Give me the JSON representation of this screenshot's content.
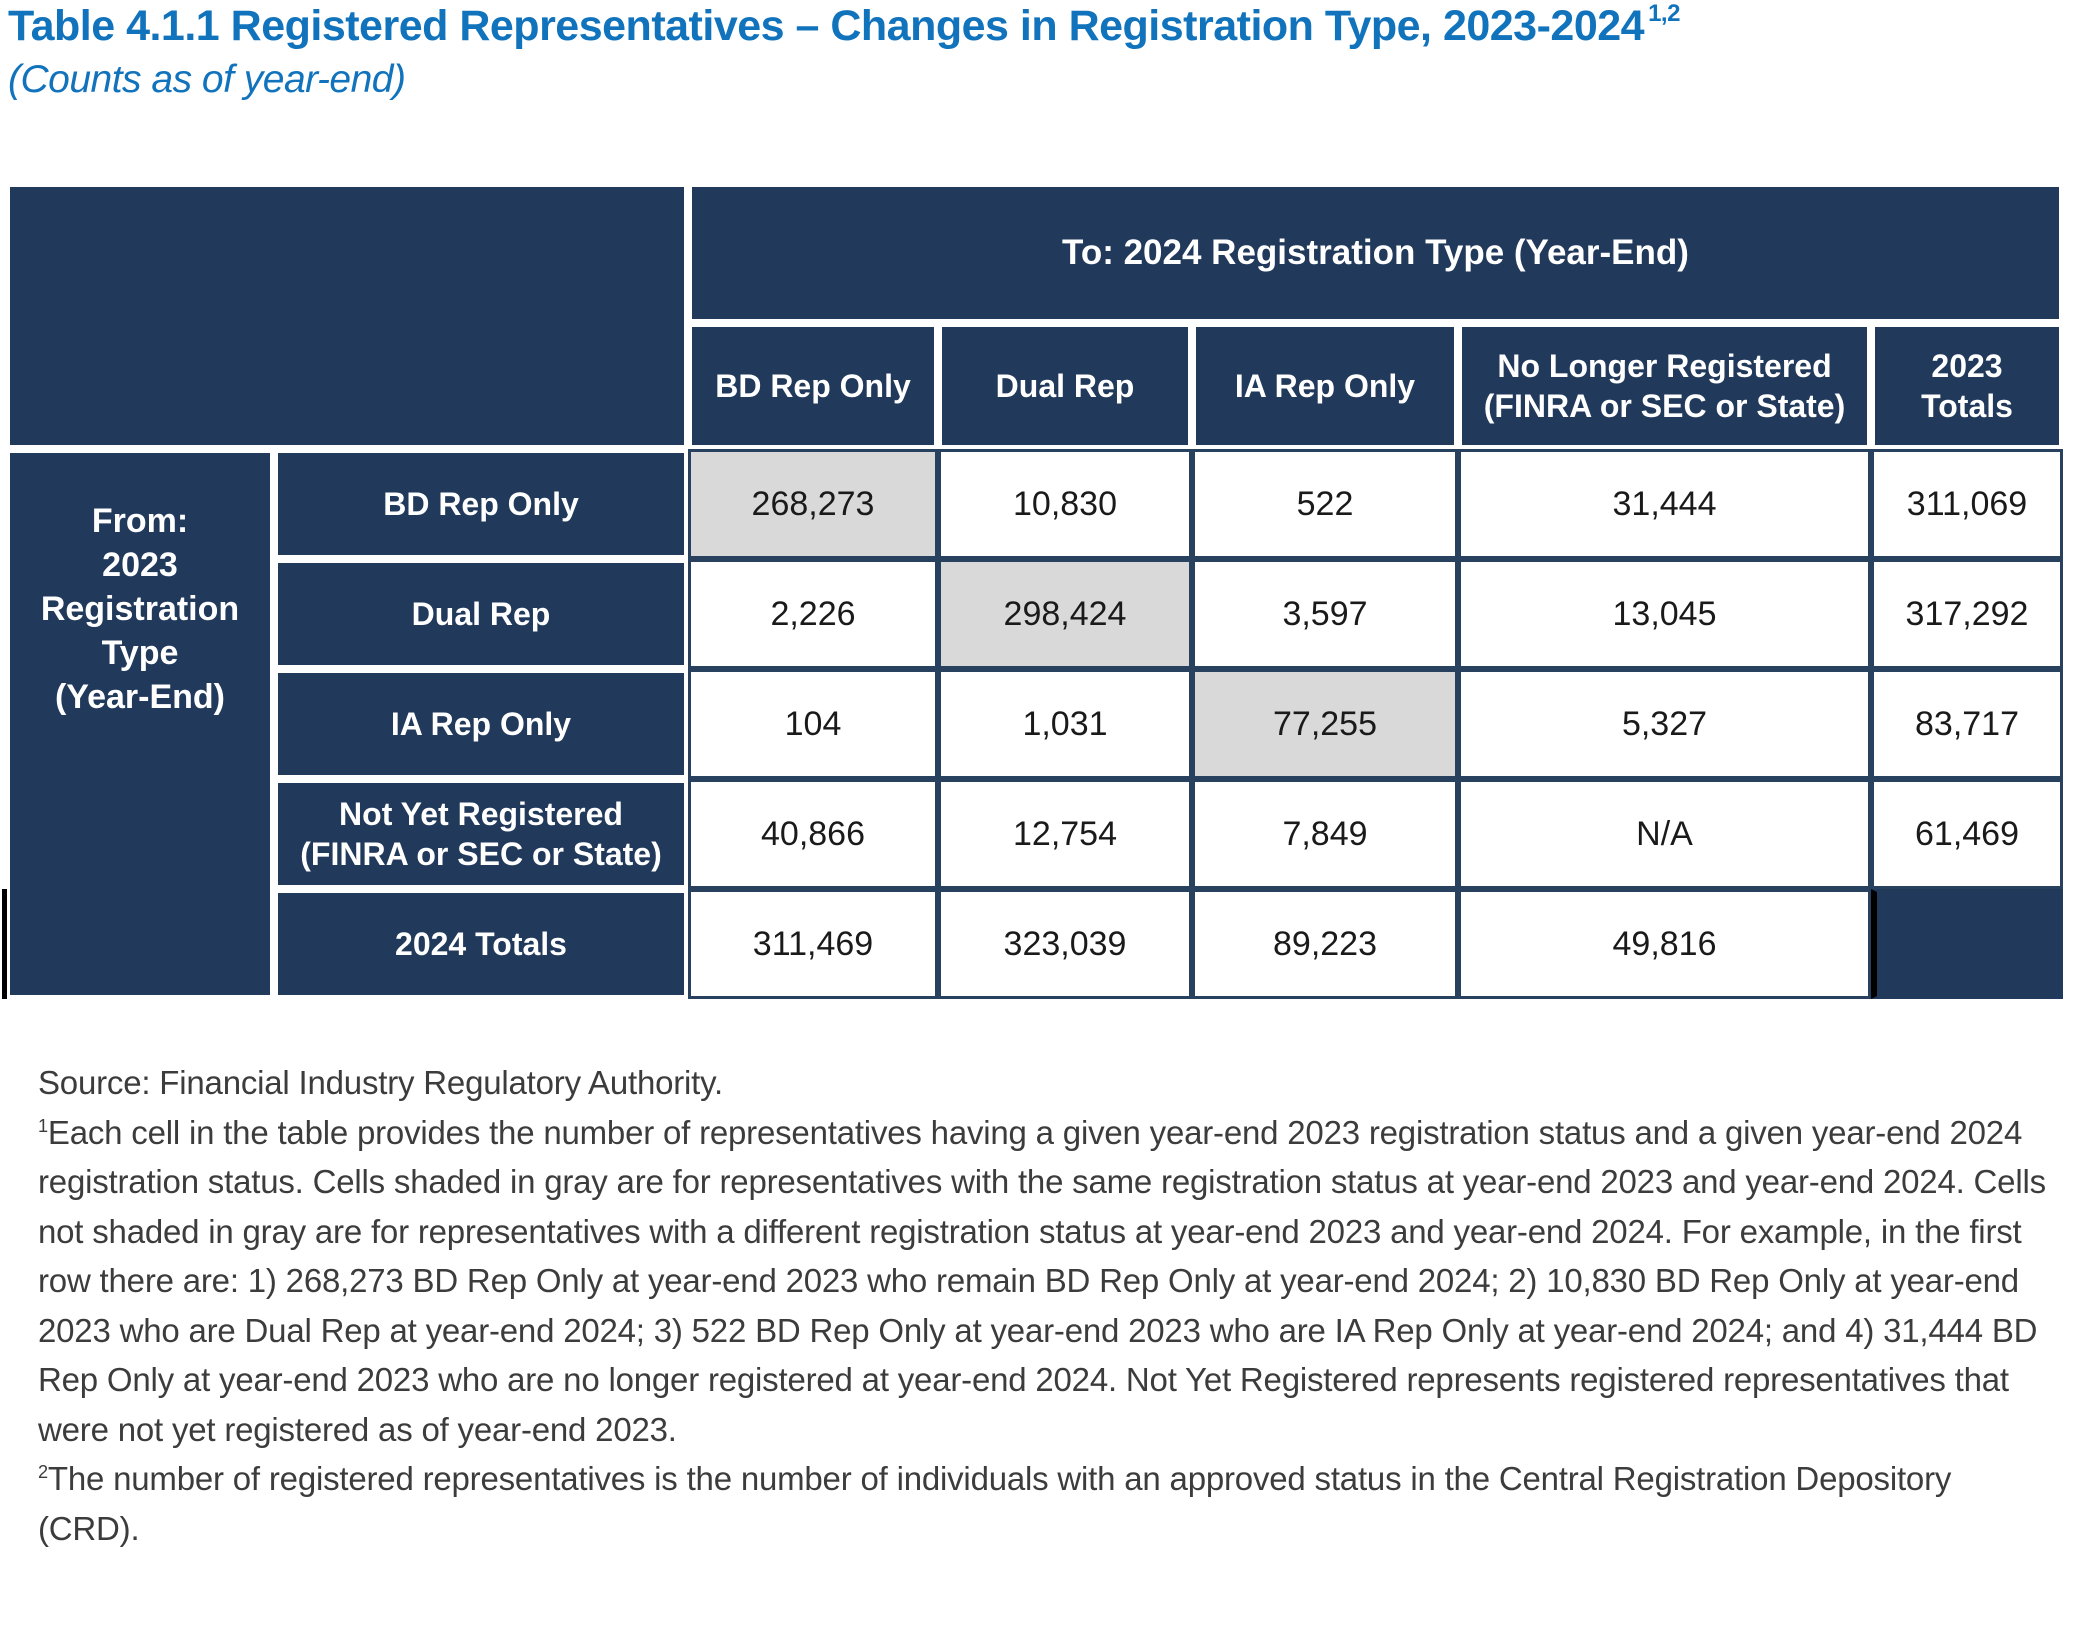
{
  "page": {
    "title": "Table 4.1.1 Registered Representatives – Changes in Registration Type, 2023-2024",
    "title_superscript": "1,2",
    "subtitle": "(Counts as of year-end)",
    "source": "Source: Financial Industry Regulatory Authority."
  },
  "table": {
    "to_header": "To: 2024 Registration Type (Year-End)",
    "from_header": "From:\n2023\nRegistration\nType\n(Year-End)",
    "columns": [
      "BD Rep Only",
      "Dual Rep",
      "IA Rep Only",
      "No Longer Registered\n(FINRA or SEC or State)",
      "2023\nTotals"
    ],
    "rows": [
      {
        "label": "BD Rep Only",
        "values": [
          "268,273",
          "10,830",
          "522",
          "31,444",
          "311,069"
        ],
        "same_status_col": 0
      },
      {
        "label": "Dual Rep",
        "values": [
          "2,226",
          "298,424",
          "3,597",
          "13,045",
          "317,292"
        ],
        "same_status_col": 1
      },
      {
        "label": "IA Rep Only",
        "values": [
          "104",
          "1,031",
          "77,255",
          "5,327",
          "83,717"
        ],
        "same_status_col": 2
      },
      {
        "label": "Not Yet Registered\n(FINRA or SEC or State)",
        "values": [
          "40,866",
          "12,754",
          "7,849",
          "N/A",
          "61,469"
        ],
        "same_status_col": -1
      },
      {
        "label": "2024 Totals",
        "values": [
          "311,469",
          "323,039",
          "89,223",
          "49,816",
          ""
        ],
        "same_status_col": -1
      }
    ]
  },
  "footnotes": [
    {
      "marker": "1",
      "text": "Each cell in the table provides the number of representatives having a given year-end 2023 registration status and a given year-end 2024 registration status. Cells shaded in gray are for representatives with the same registration status at year-end 2023 and year-end 2024. Cells not shaded in gray are for representatives with a different registration status at year-end 2023 and year-end 2024. For example, in the first row there are: 1) 268,273 BD Rep Only at year-end 2023 who remain BD Rep Only at year-end 2024; 2) 10,830 BD Rep Only at year-end 2023 who are Dual Rep at year-end 2024; 3) 522 BD Rep Only at year-end 2023 who are IA Rep Only at year-end 2024; and 4) 31,444 BD Rep Only at year-end 2023 who are no longer registered at year-end 2024. Not Yet Registered represents registered representatives that were not yet registered as of year-end 2023."
    },
    {
      "marker": "2",
      "text": "The number of registered representatives is the number of individuals with an approved status in the Central Registration Depository (CRD)."
    }
  ],
  "colors": {
    "header_navy": "#21395B",
    "border_navy": "#27415F",
    "same_status_gray": "#D9D9D9",
    "title_blue": "#1273BD",
    "number_text": "#1A1A1A",
    "note_text": "#3C3C3C"
  }
}
